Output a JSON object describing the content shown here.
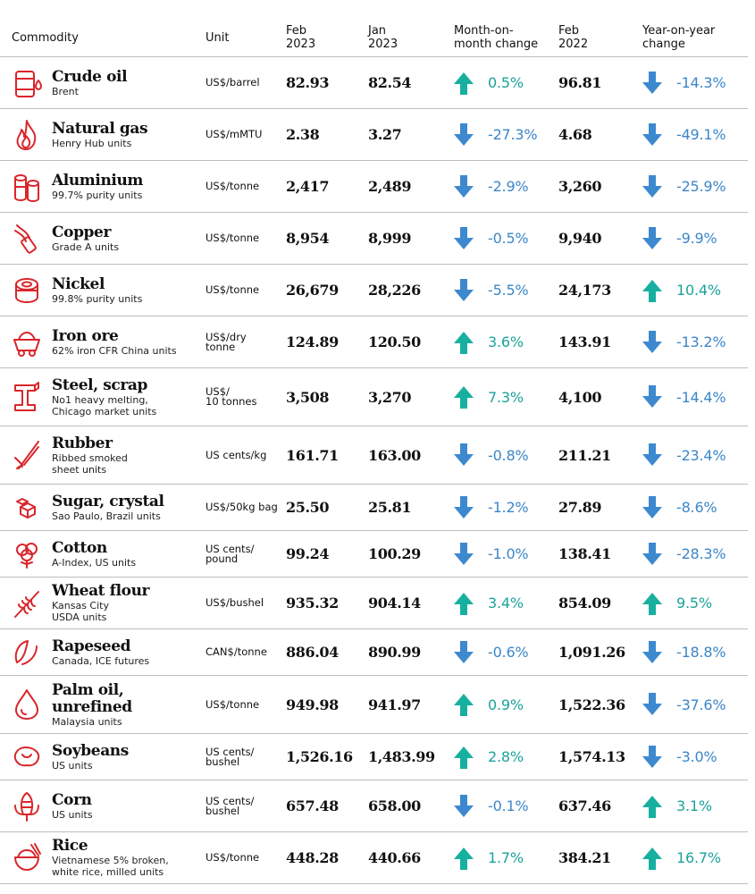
{
  "colors": {
    "up": "#17b0a0",
    "down": "#3d89cf",
    "icon_red": "#d9262b"
  },
  "chart_data": {
    "type": "table",
    "columns": {
      "commodity": "Commodity",
      "unit": "Unit",
      "feb2023": [
        "Feb",
        "2023"
      ],
      "jan2023": [
        "Jan",
        "2023"
      ],
      "mom": [
        "Month-on-",
        "month change"
      ],
      "feb2022": [
        "Feb",
        "2022"
      ],
      "yoy": [
        "Year-on-year",
        "change"
      ]
    },
    "rows": [
      {
        "name": "Crude oil",
        "sub": [
          "Brent"
        ],
        "unit": [
          "US$/barrel"
        ],
        "feb2023": "82.93",
        "jan2023": "82.54",
        "mom": "0.5%",
        "mom_dir": "up",
        "feb2022": "96.81",
        "yoy": "-14.3%",
        "yoy_dir": "down",
        "icon": "oil-barrel-icon"
      },
      {
        "name": "Natural gas",
        "sub": [
          "Henry Hub units"
        ],
        "unit": [
          "US$/mMTU"
        ],
        "feb2023": "2.38",
        "jan2023": "3.27",
        "mom": "-27.3%",
        "mom_dir": "down",
        "feb2022": "4.68",
        "yoy": "-49.1%",
        "yoy_dir": "down",
        "icon": "flame-icon"
      },
      {
        "name": "Aluminium",
        "sub": [
          "99.7% purity units"
        ],
        "unit": [
          "US$/tonne"
        ],
        "feb2023": "2,417",
        "jan2023": "2,489",
        "mom": "-2.9%",
        "mom_dir": "down",
        "feb2022": "3,260",
        "yoy": "-25.9%",
        "yoy_dir": "down",
        "icon": "cans-icon"
      },
      {
        "name": "Copper",
        "sub": [
          "Grade A units"
        ],
        "unit": [
          "US$/tonne"
        ],
        "feb2023": "8,954",
        "jan2023": "8,999",
        "mom": "-0.5%",
        "mom_dir": "down",
        "feb2022": "9,940",
        "yoy": "-9.9%",
        "yoy_dir": "down",
        "icon": "wire-icon"
      },
      {
        "name": "Nickel",
        "sub": [
          "99.8% purity units"
        ],
        "unit": [
          "US$/tonne"
        ],
        "feb2023": "26,679",
        "jan2023": "28,226",
        "mom": "-5.5%",
        "mom_dir": "down",
        "feb2022": "24,173",
        "yoy": "10.4%",
        "yoy_dir": "up",
        "icon": "coins-icon"
      },
      {
        "name": "Iron ore",
        "sub": [
          "62% iron CFR China units"
        ],
        "unit": [
          "US$/dry",
          "tonne"
        ],
        "feb2023": "124.89",
        "jan2023": "120.50",
        "mom": "3.6%",
        "mom_dir": "up",
        "feb2022": "143.91",
        "yoy": "-13.2%",
        "yoy_dir": "down",
        "icon": "mine-cart-icon"
      },
      {
        "name": "Steel, scrap",
        "sub": [
          "No1 heavy melting,",
          "Chicago market units"
        ],
        "unit": [
          "US$/",
          "10 tonnes"
        ],
        "feb2023": "3,508",
        "jan2023": "3,270",
        "mom": "7.3%",
        "mom_dir": "up",
        "feb2022": "4,100",
        "yoy": "-14.4%",
        "yoy_dir": "down",
        "icon": "steel-beam-icon"
      },
      {
        "name": "Rubber",
        "sub": [
          "Ribbed smoked",
          "sheet units"
        ],
        "unit": [
          "US cents/kg"
        ],
        "feb2023": "161.71",
        "jan2023": "163.00",
        "mom": "-0.8%",
        "mom_dir": "down",
        "feb2022": "211.21",
        "yoy": "-23.4%",
        "yoy_dir": "down",
        "icon": "rubber-tree-icon"
      },
      {
        "name": "Sugar, crystal",
        "sub": [
          "Sao Paulo, Brazil units"
        ],
        "unit": [
          "US$/50kg bag"
        ],
        "feb2023": "25.50",
        "jan2023": "25.81",
        "mom": "-1.2%",
        "mom_dir": "down",
        "feb2022": "27.89",
        "yoy": "-8.6%",
        "yoy_dir": "down",
        "icon": "sugar-cubes-icon"
      },
      {
        "name": "Cotton",
        "sub": [
          "A-Index, US units"
        ],
        "unit": [
          "US cents/",
          "pound"
        ],
        "feb2023": "99.24",
        "jan2023": "100.29",
        "mom": "-1.0%",
        "mom_dir": "down",
        "feb2022": "138.41",
        "yoy": "-28.3%",
        "yoy_dir": "down",
        "icon": "cotton-icon"
      },
      {
        "name": "Wheat flour",
        "sub": [
          "Kansas City",
          "USDA units"
        ],
        "unit": [
          "US$/bushel"
        ],
        "feb2023": "935.32",
        "jan2023": "904.14",
        "mom": "3.4%",
        "mom_dir": "up",
        "feb2022": "854.09",
        "yoy": "9.5%",
        "yoy_dir": "up",
        "icon": "wheat-icon"
      },
      {
        "name": "Rapeseed",
        "sub": [
          "Canada, ICE futures"
        ],
        "unit": [
          "CAN$/tonne"
        ],
        "feb2023": "886.04",
        "jan2023": "890.99",
        "mom": "-0.6%",
        "mom_dir": "down",
        "feb2022": "1,091.26",
        "yoy": "-18.8%",
        "yoy_dir": "down",
        "icon": "rapeseed-icon"
      },
      {
        "name": "Palm oil, unrefined",
        "sub": [
          "Malaysia units"
        ],
        "unit": [
          "US$/tonne"
        ],
        "feb2023": "949.98",
        "jan2023": "941.97",
        "mom": "0.9%",
        "mom_dir": "up",
        "feb2022": "1,522.36",
        "yoy": "-37.6%",
        "yoy_dir": "down",
        "icon": "oil-drop-icon"
      },
      {
        "name": "Soybeans",
        "sub": [
          "US units"
        ],
        "unit": [
          "US cents/",
          "bushel"
        ],
        "feb2023": "1,526.16",
        "jan2023": "1,483.99",
        "mom": "2.8%",
        "mom_dir": "up",
        "feb2022": "1,574.13",
        "yoy": "-3.0%",
        "yoy_dir": "down",
        "icon": "soybeans-icon"
      },
      {
        "name": "Corn",
        "sub": [
          "US units"
        ],
        "unit": [
          "US cents/",
          "bushel"
        ],
        "feb2023": "657.48",
        "jan2023": "658.00",
        "mom": "-0.1%",
        "mom_dir": "down",
        "feb2022": "637.46",
        "yoy": "3.1%",
        "yoy_dir": "up",
        "icon": "corn-icon"
      },
      {
        "name": "Rice",
        "sub": [
          "Vietnamese 5% broken,",
          "white rice, milled units"
        ],
        "unit": [
          "US$/tonne"
        ],
        "feb2023": "448.28",
        "jan2023": "440.66",
        "mom": "1.7%",
        "mom_dir": "up",
        "feb2022": "384.21",
        "yoy": "16.7%",
        "yoy_dir": "up",
        "icon": "rice-bowl-icon"
      }
    ]
  }
}
